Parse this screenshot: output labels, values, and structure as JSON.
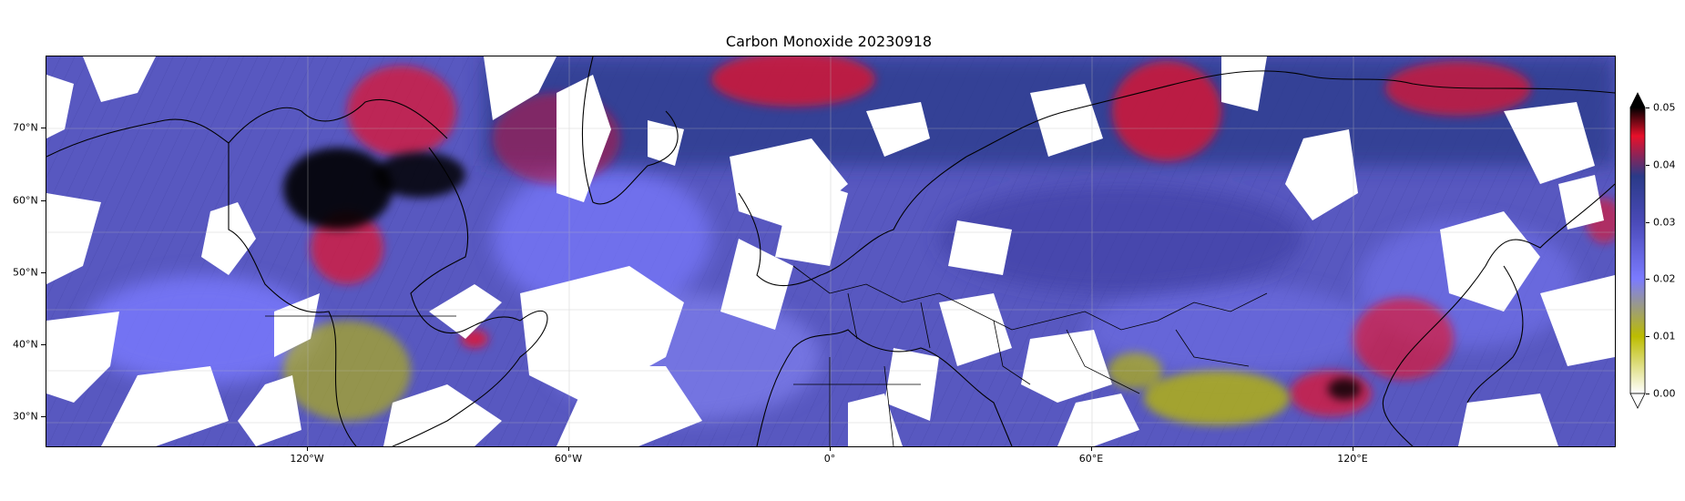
{
  "title": "Carbon Monoxide 20230918",
  "map": {
    "projection": "PlateCarree",
    "lon_range": [
      -180,
      180
    ],
    "lat_range": [
      26,
      80
    ],
    "gridlines": true,
    "coastlines": true,
    "borders": true,
    "xticks": [
      {
        "lon": -120,
        "label": "120°W"
      },
      {
        "lon": -60,
        "label": "60°W"
      },
      {
        "lon": 0,
        "label": "0°"
      },
      {
        "lon": 60,
        "label": "60°E"
      },
      {
        "lon": 120,
        "label": "120°E"
      }
    ],
    "yticks": [
      {
        "lat": 70,
        "label": "70°N"
      },
      {
        "lat": 60,
        "label": "60°N"
      },
      {
        "lat": 50,
        "label": "50°N"
      },
      {
        "lat": 40,
        "label": "40°N"
      },
      {
        "lat": 30,
        "label": "30°N"
      }
    ],
    "missing_color": "#ffffff"
  },
  "colorbar": {
    "orientation": "vertical",
    "placement": "right",
    "min": 0.0,
    "max": 0.05,
    "extend": "both",
    "ticks": [
      {
        "value": 0.0,
        "label": "0.00"
      },
      {
        "value": 0.01,
        "label": "0.01"
      },
      {
        "value": 0.02,
        "label": "0.02"
      },
      {
        "value": 0.03,
        "label": "0.03"
      },
      {
        "value": 0.04,
        "label": "0.04"
      },
      {
        "value": 0.05,
        "label": "0.05"
      }
    ],
    "stops": [
      {
        "value": 0.0,
        "color": "#ffffff"
      },
      {
        "value": 0.01,
        "color": "#bcbc00"
      },
      {
        "value": 0.02,
        "color": "#7b7bff"
      },
      {
        "value": 0.03,
        "color": "#4a4ab8"
      },
      {
        "value": 0.038,
        "color": "#2a3a88"
      },
      {
        "value": 0.045,
        "color": "#e8102a"
      },
      {
        "value": 0.05,
        "color": "#000000"
      }
    ]
  }
}
